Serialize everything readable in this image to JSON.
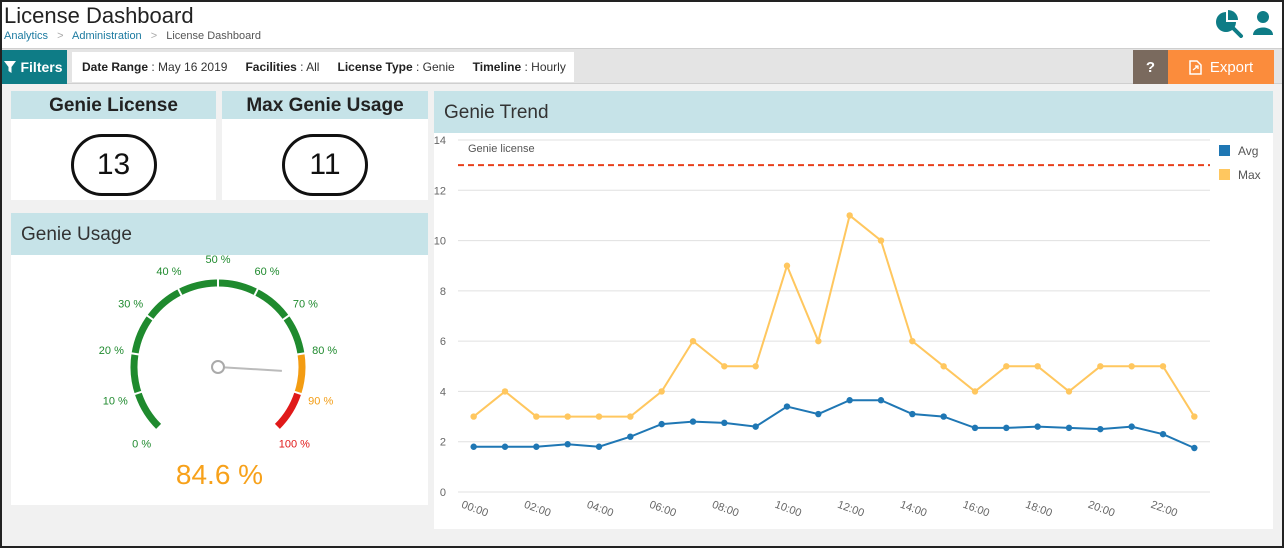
{
  "header": {
    "title": "License Dashboard",
    "breadcrumb": [
      "Analytics",
      "Administration",
      "License Dashboard"
    ],
    "breadcrumb_separator": ">",
    "icons": [
      "analytics-tools-icon",
      "user-icon"
    ]
  },
  "filterbar": {
    "filters_label": "Filters",
    "chips": [
      {
        "label": "Date Range",
        "value": "May 16 2019"
      },
      {
        "label": "Facilities",
        "value": "All"
      },
      {
        "label": "License Type",
        "value": "Genie"
      },
      {
        "label": "Timeline",
        "value": "Hourly"
      }
    ],
    "help_label": "?",
    "export_label": "Export"
  },
  "kpis": {
    "license": {
      "title": "Genie License",
      "value": "13"
    },
    "max_usage": {
      "title": "Max Genie Usage",
      "value": "11"
    }
  },
  "usage": {
    "title": "Genie Usage",
    "value": 84.6,
    "value_text": "84.6 %",
    "ticks": [
      "0 %",
      "10 %",
      "20 %",
      "30 %",
      "40 %",
      "50 %",
      "60 %",
      "70 %",
      "80 %",
      "90 %",
      "100 %"
    ],
    "colors": {
      "green": "#1f8a2e",
      "orange": "#f39c12",
      "red": "#e01919",
      "value": "#f7a11a"
    }
  },
  "trend": {
    "title": "Genie Trend",
    "legend": [
      {
        "name": "Avg",
        "color": "#1f77b4"
      },
      {
        "name": "Max",
        "color": "#ffc75f"
      }
    ]
  },
  "chart_data": {
    "type": "line",
    "title": "Genie Trend",
    "x": [
      "00:00",
      "01:00",
      "02:00",
      "03:00",
      "04:00",
      "05:00",
      "06:00",
      "07:00",
      "08:00",
      "09:00",
      "10:00",
      "11:00",
      "12:00",
      "13:00",
      "14:00",
      "15:00",
      "16:00",
      "17:00",
      "18:00",
      "19:00",
      "20:00",
      "21:00",
      "22:00",
      "23:00"
    ],
    "x_tick_labels": [
      "00:00",
      "02:00",
      "04:00",
      "06:00",
      "08:00",
      "10:00",
      "12:00",
      "14:00",
      "16:00",
      "18:00",
      "20:00",
      "22:00"
    ],
    "ylim": [
      0,
      14
    ],
    "y_ticks": [
      "0",
      "2",
      "4",
      "6",
      "8",
      "10",
      "12",
      "14"
    ],
    "grid": true,
    "legend_position": "top-right",
    "series": [
      {
        "name": "Avg",
        "color": "#1f77b4",
        "values": [
          1.8,
          1.8,
          1.8,
          1.9,
          1.8,
          2.2,
          2.7,
          2.8,
          2.75,
          2.6,
          3.4,
          3.1,
          3.65,
          3.65,
          3.1,
          3.0,
          2.55,
          2.55,
          2.6,
          2.55,
          2.5,
          2.6,
          2.3,
          1.75
        ]
      },
      {
        "name": "Max",
        "color": "#ffc75f",
        "values": [
          3,
          4,
          3,
          3,
          3,
          3,
          4,
          6,
          5,
          5,
          9,
          6,
          11,
          10,
          6,
          5,
          4,
          5,
          5,
          4,
          5,
          5,
          5,
          3
        ]
      }
    ],
    "reference_line": {
      "label": "Genie license",
      "value": 13,
      "color": "#e8401c"
    }
  }
}
